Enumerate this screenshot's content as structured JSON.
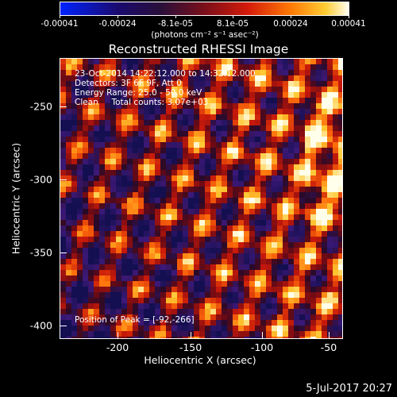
{
  "colorbar": {
    "tick_labels": [
      "-0.00041",
      "-0.00024",
      "-8.1e-05",
      "8.1e-05",
      "0.00024",
      "0.00041"
    ],
    "units": "(photons cm⁻² s⁻¹ asec⁻²)"
  },
  "title": "Reconstructed RHESSI Image",
  "info": {
    "line1": "23-Oct-2014 14:22:12.000 to 14:32:12.000",
    "line2": "Detectors: 3F 6F 9F, Att 0",
    "line3": "Energy Range: 25.0 - 50.0 keV",
    "line4": "Clean     Total counts: 3.07e+03",
    "peak": "Position of Peak = [-92,-266]"
  },
  "axes": {
    "xlabel": "Heliocentric X (arcsec)",
    "ylabel": "Heliocentric Y (arcsec)",
    "xticks": [
      "-200",
      "-150",
      "-100",
      "-50"
    ],
    "yticks": [
      "-250",
      "-300",
      "-350",
      "-400"
    ]
  },
  "footer_date": "5-Jul-2017 20:27"
}
